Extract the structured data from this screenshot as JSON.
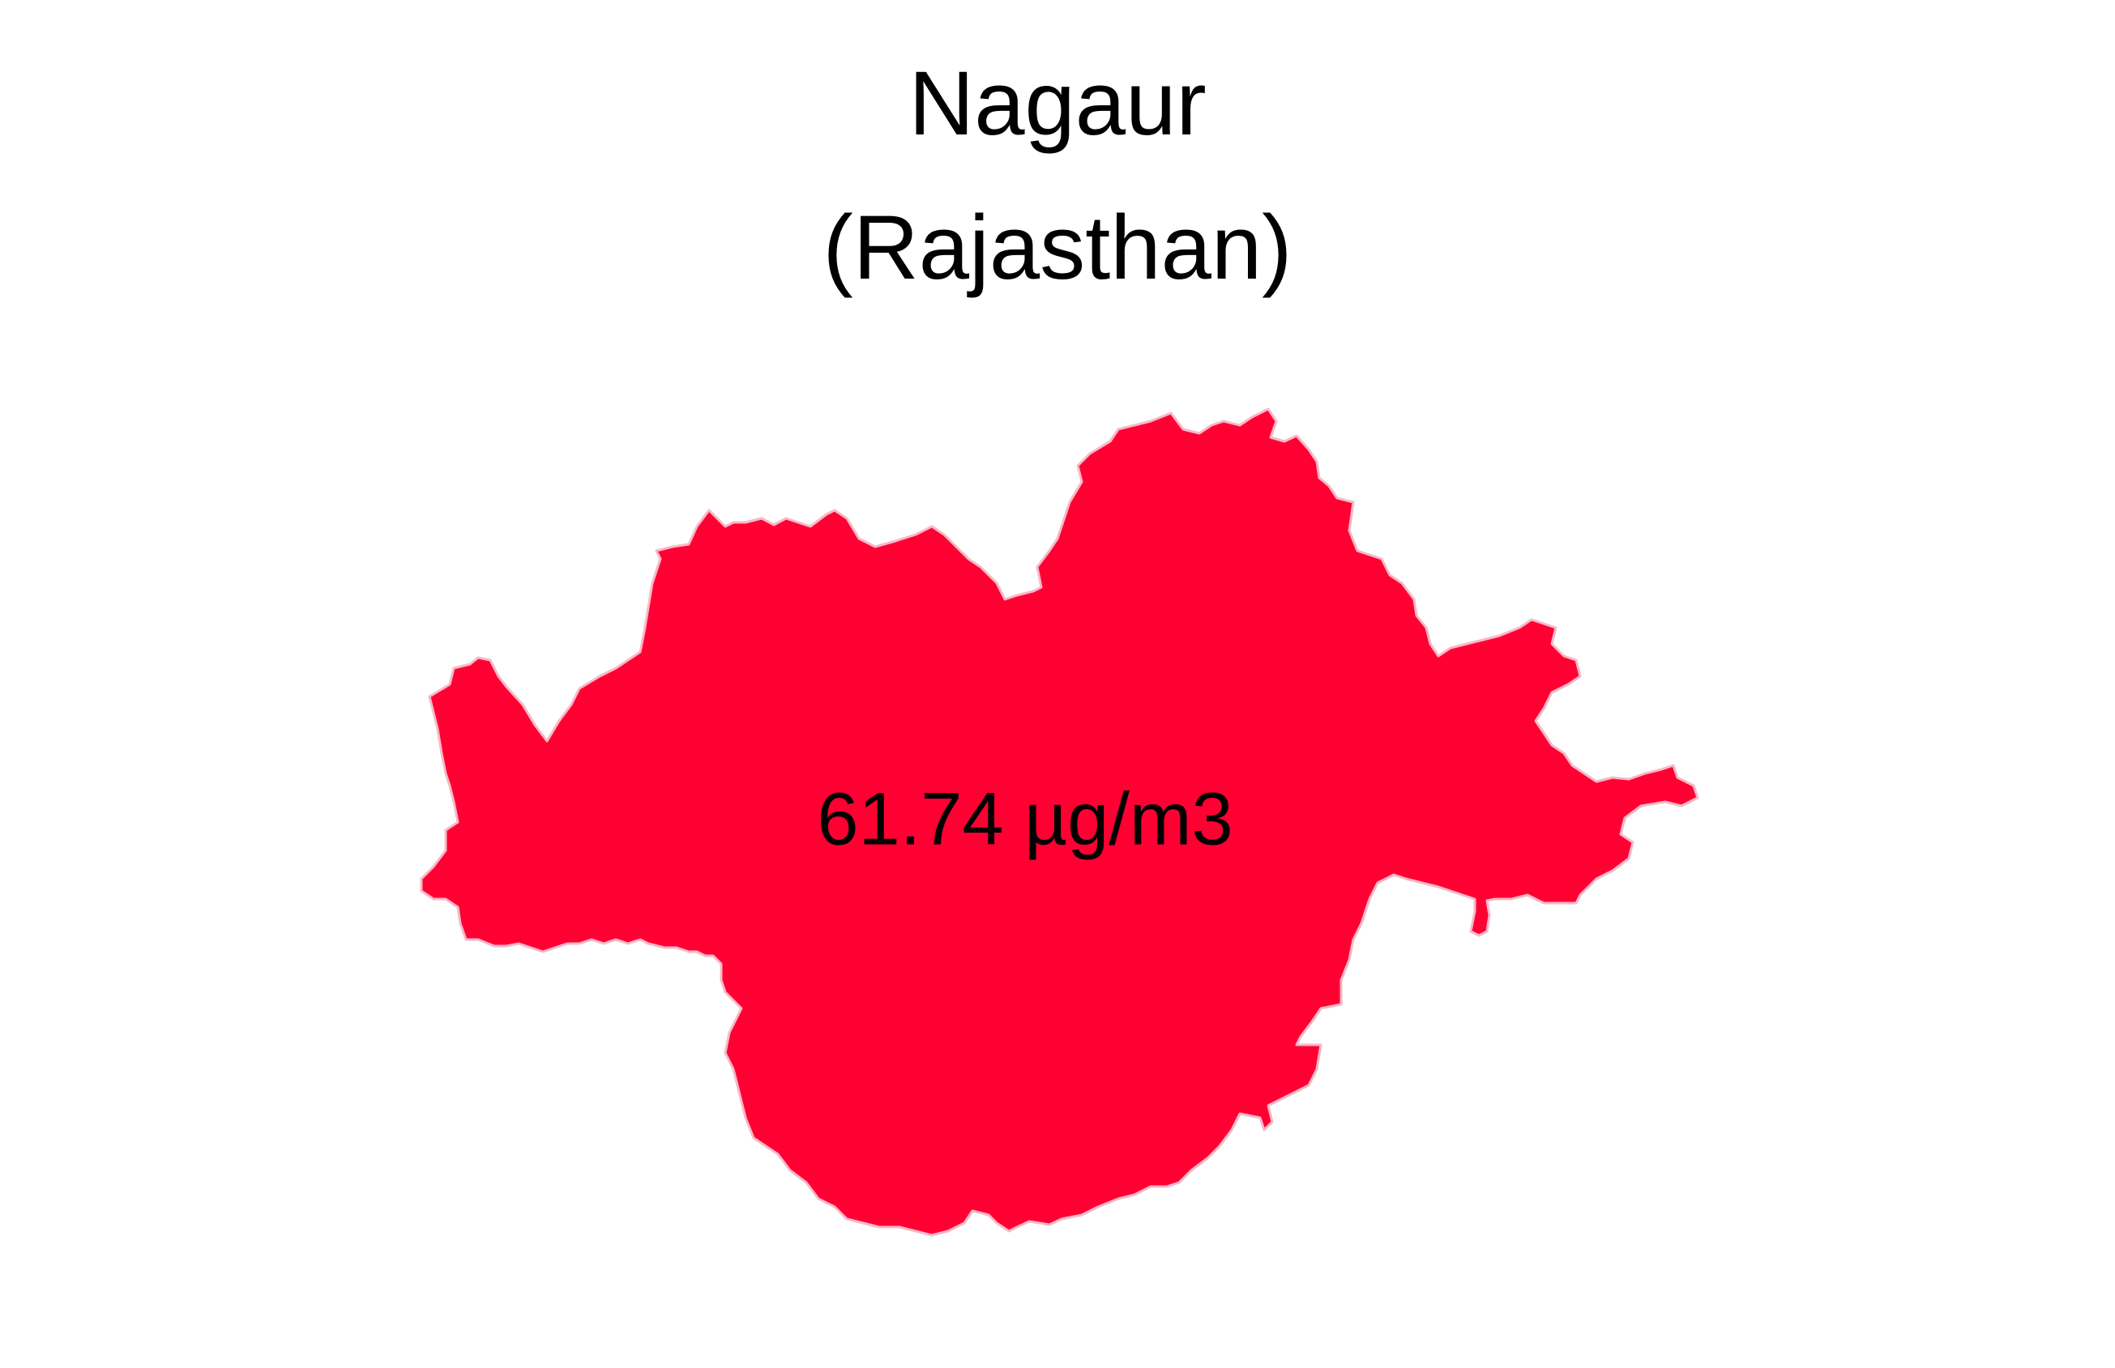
{
  "title": {
    "district": "Nagaur",
    "state": "(Rajasthan)"
  },
  "region": {
    "name": "Nagaur",
    "value_label": "61.74 µg/m3",
    "fill_color": "#FF0033",
    "border_color": "#F6B8C6"
  },
  "background_color": "#FFFFFF"
}
